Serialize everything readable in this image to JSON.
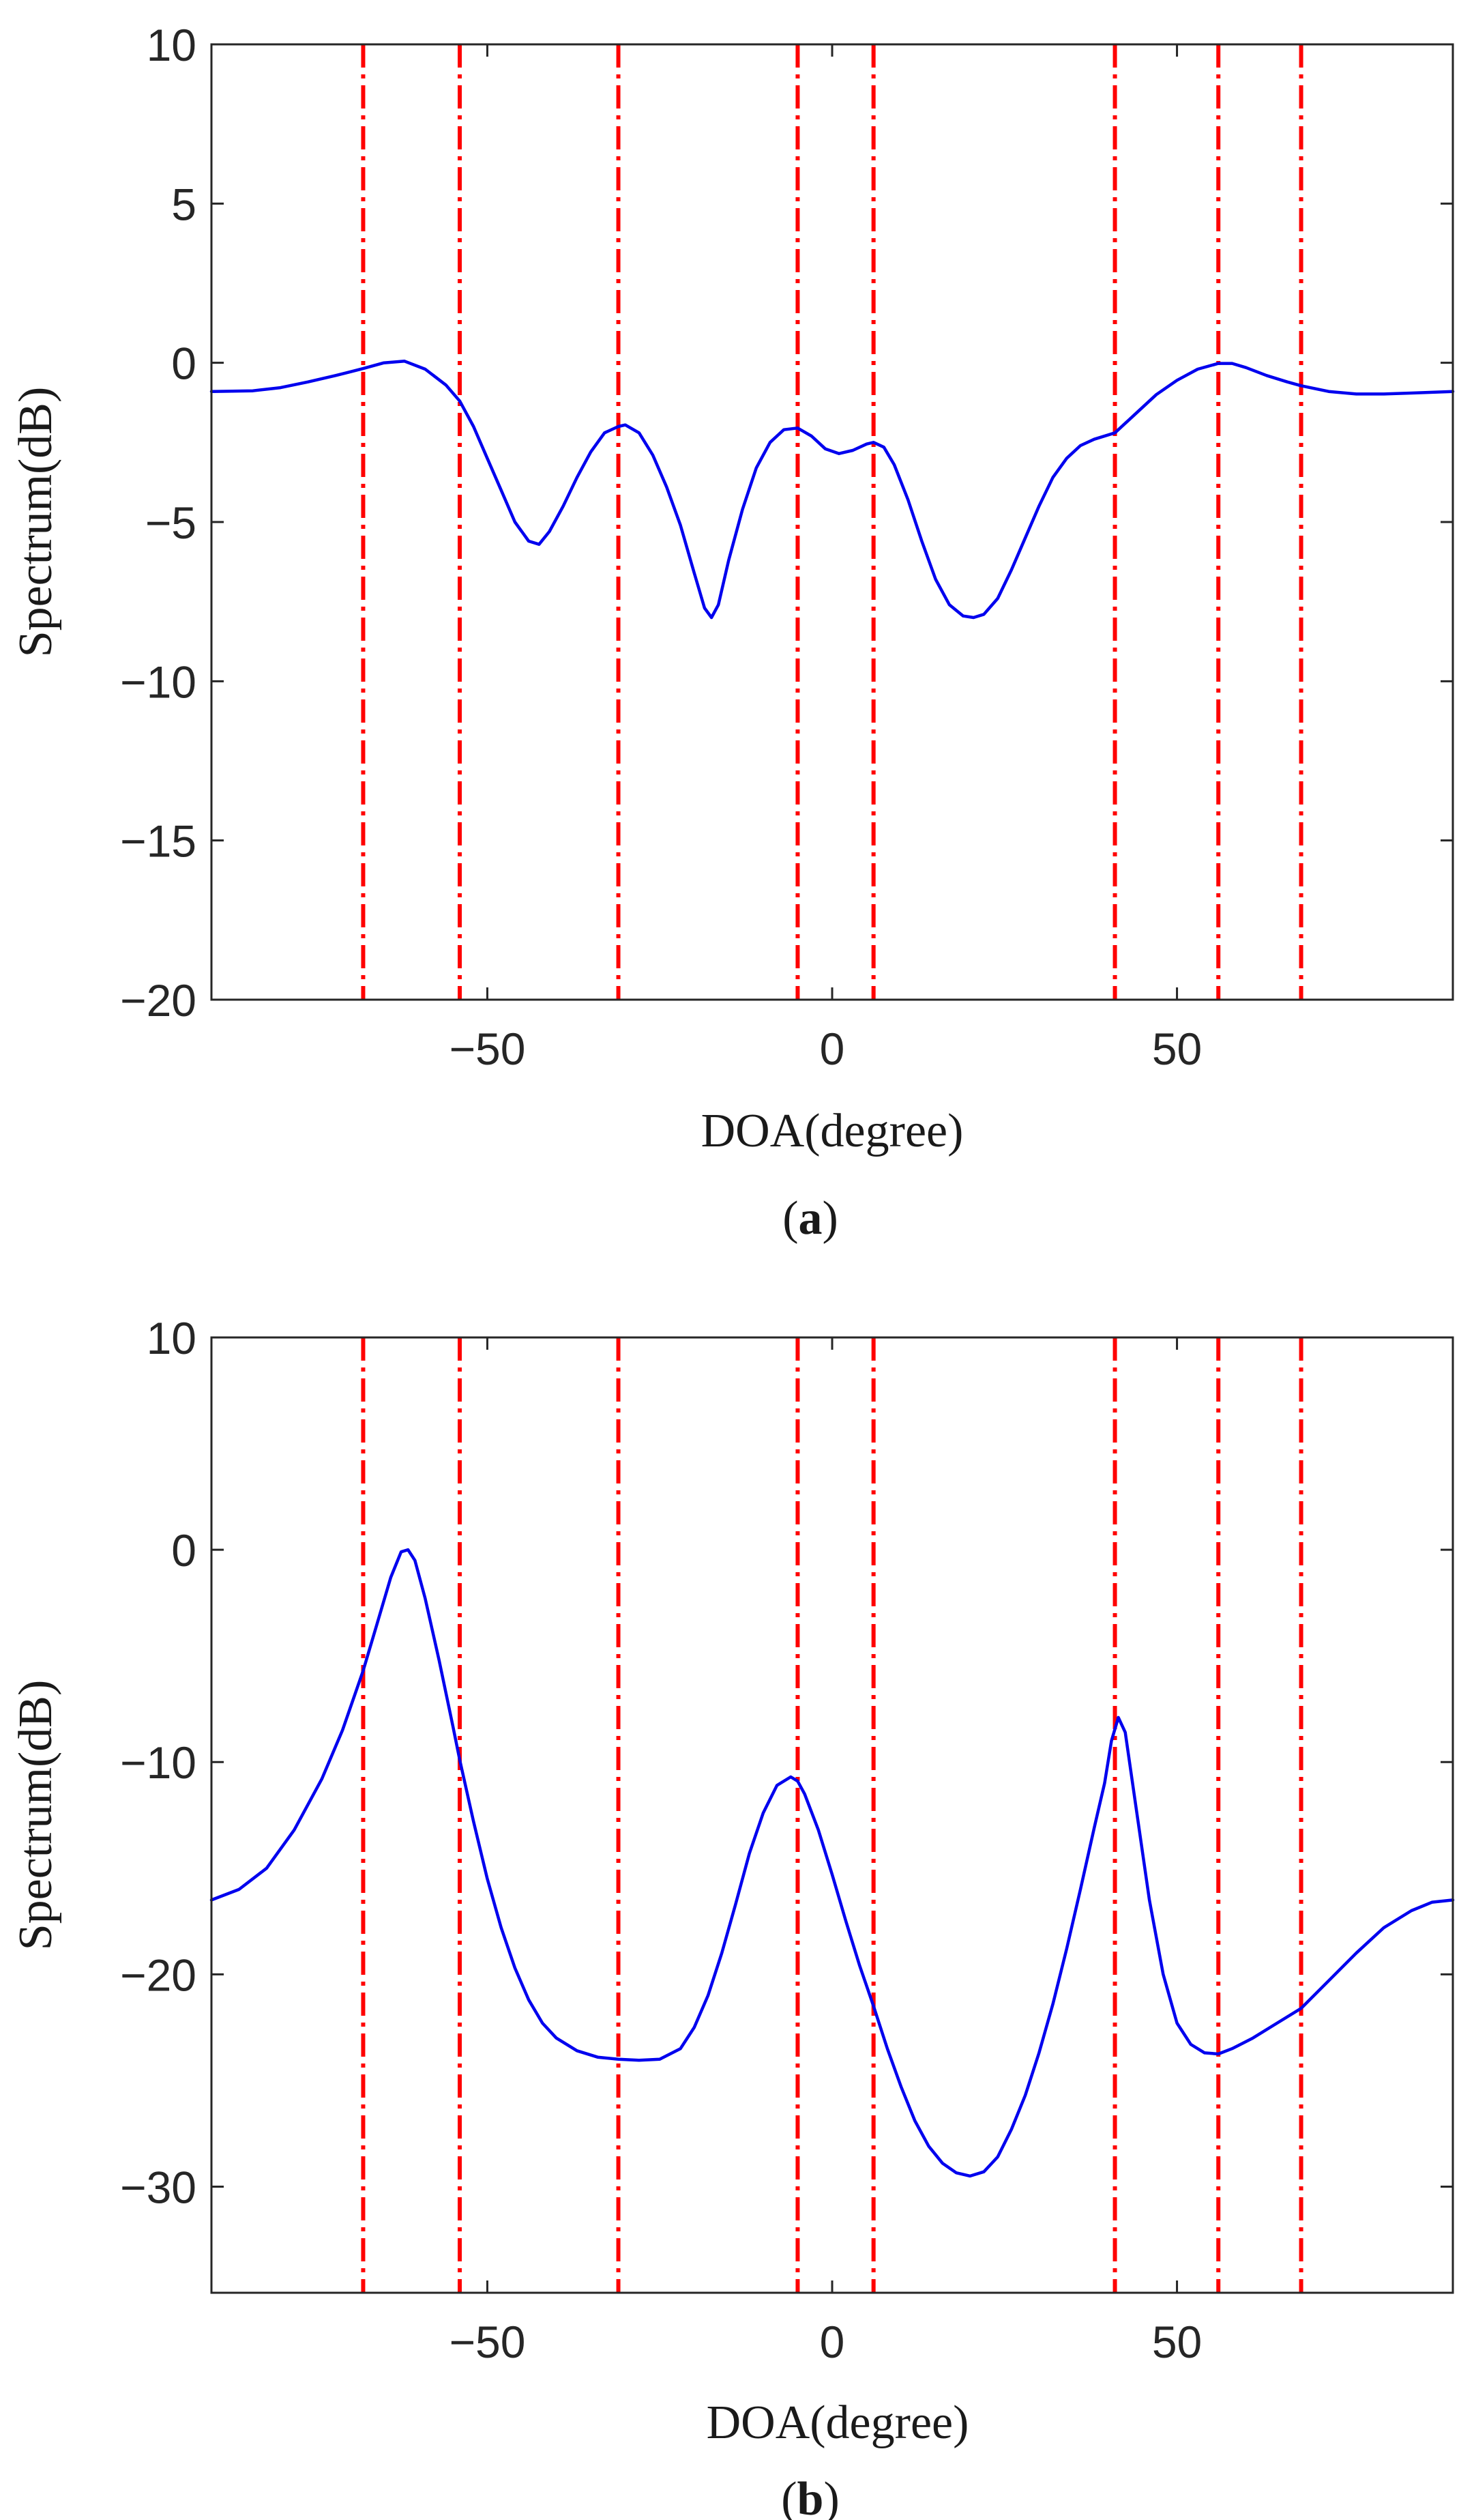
{
  "chart_data": [
    {
      "type": "line",
      "panel_label": "a",
      "title": "",
      "xlabel": "DOA(degree)",
      "ylabel": "Spectrum(dB)",
      "xlim": [
        -90,
        90
      ],
      "ylim": [
        -20,
        10
      ],
      "xticks": [
        -50,
        0,
        50
      ],
      "xtick_labels": [
        "−50",
        "0",
        "50"
      ],
      "yticks": [
        10,
        5,
        0,
        -5,
        -10,
        -15,
        -20
      ],
      "ytick_labels": [
        "10",
        "5",
        "0",
        "−5",
        "−10",
        "−15",
        "−20"
      ],
      "grid": false,
      "reference_lines": {
        "orientation": "vertical",
        "style": "dash-dot",
        "color": "#ff0000",
        "x": [
          -68,
          -54,
          -31,
          -5,
          6,
          41,
          56,
          68
        ]
      },
      "series": [
        {
          "name": "spectrum",
          "color": "#0000ee",
          "points": [
            [
              -90,
              -0.9
            ],
            [
              -84,
              -0.88
            ],
            [
              -80,
              -0.78
            ],
            [
              -76,
              -0.6
            ],
            [
              -72,
              -0.4
            ],
            [
              -68,
              -0.18
            ],
            [
              -65,
              0.0
            ],
            [
              -62,
              0.05
            ],
            [
              -59,
              -0.2
            ],
            [
              -56,
              -0.7
            ],
            [
              -54,
              -1.2
            ],
            [
              -52,
              -2.0
            ],
            [
              -50,
              -3.0
            ],
            [
              -48,
              -4.0
            ],
            [
              -46,
              -5.0
            ],
            [
              -44,
              -5.6
            ],
            [
              -42.5,
              -5.7
            ],
            [
              -41,
              -5.3
            ],
            [
              -39,
              -4.5
            ],
            [
              -37,
              -3.6
            ],
            [
              -35,
              -2.8
            ],
            [
              -33,
              -2.2
            ],
            [
              -31,
              -2.0
            ],
            [
              -30,
              -1.95
            ],
            [
              -28,
              -2.2
            ],
            [
              -26,
              -2.9
            ],
            [
              -24,
              -3.9
            ],
            [
              -22,
              -5.1
            ],
            [
              -20,
              -6.6
            ],
            [
              -18.5,
              -7.7
            ],
            [
              -17.5,
              -8.0
            ],
            [
              -16.5,
              -7.6
            ],
            [
              -15,
              -6.2
            ],
            [
              -13,
              -4.6
            ],
            [
              -11,
              -3.3
            ],
            [
              -9,
              -2.5
            ],
            [
              -7,
              -2.1
            ],
            [
              -5,
              -2.05
            ],
            [
              -3,
              -2.3
            ],
            [
              -1,
              -2.7
            ],
            [
              1,
              -2.85
            ],
            [
              3,
              -2.75
            ],
            [
              5,
              -2.55
            ],
            [
              6,
              -2.5
            ],
            [
              7.5,
              -2.65
            ],
            [
              9,
              -3.2
            ],
            [
              11,
              -4.3
            ],
            [
              13,
              -5.6
            ],
            [
              15,
              -6.8
            ],
            [
              17,
              -7.6
            ],
            [
              19,
              -7.95
            ],
            [
              20.5,
              -8.0
            ],
            [
              22,
              -7.9
            ],
            [
              24,
              -7.4
            ],
            [
              26,
              -6.5
            ],
            [
              28,
              -5.5
            ],
            [
              30,
              -4.5
            ],
            [
              32,
              -3.6
            ],
            [
              34,
              -3.0
            ],
            [
              36,
              -2.6
            ],
            [
              38,
              -2.4
            ],
            [
              41,
              -2.2
            ],
            [
              44,
              -1.6
            ],
            [
              47,
              -1.0
            ],
            [
              50,
              -0.55
            ],
            [
              53,
              -0.2
            ],
            [
              56,
              -0.02
            ],
            [
              58,
              -0.02
            ],
            [
              60,
              -0.15
            ],
            [
              63,
              -0.4
            ],
            [
              66,
              -0.6
            ],
            [
              68,
              -0.72
            ],
            [
              72,
              -0.9
            ],
            [
              76,
              -0.98
            ],
            [
              80,
              -0.98
            ],
            [
              84,
              -0.95
            ],
            [
              90,
              -0.9
            ]
          ]
        }
      ]
    },
    {
      "type": "line",
      "panel_label": "b",
      "title": "",
      "xlabel": "DOA(degree)",
      "ylabel": "Spectrum(dB)",
      "xlim": [
        -90,
        90
      ],
      "ylim": [
        -35,
        10
      ],
      "xticks": [
        -50,
        0,
        50
      ],
      "xtick_labels": [
        "−50",
        "0",
        "50"
      ],
      "yticks": [
        10,
        0,
        -10,
        -20,
        -30
      ],
      "ytick_labels": [
        "10",
        "0",
        "−10",
        "−20",
        "−30"
      ],
      "grid": false,
      "reference_lines": {
        "orientation": "vertical",
        "style": "dash-dot",
        "color": "#ff0000",
        "x": [
          -68,
          -54,
          -31,
          -5,
          6,
          41,
          56,
          68
        ]
      },
      "series": [
        {
          "name": "spectrum",
          "color": "#0000ee",
          "points": [
            [
              -90,
              -16.5
            ],
            [
              -86,
              -16.0
            ],
            [
              -82,
              -15.0
            ],
            [
              -78,
              -13.2
            ],
            [
              -74,
              -10.8
            ],
            [
              -71,
              -8.5
            ],
            [
              -68,
              -5.7
            ],
            [
              -66,
              -3.5
            ],
            [
              -64,
              -1.3
            ],
            [
              -62.5,
              -0.1
            ],
            [
              -61.5,
              0.0
            ],
            [
              -60.5,
              -0.5
            ],
            [
              -59,
              -2.3
            ],
            [
              -57,
              -5.2
            ],
            [
              -55,
              -8.3
            ],
            [
              -54,
              -9.9
            ],
            [
              -52,
              -12.8
            ],
            [
              -50,
              -15.5
            ],
            [
              -48,
              -17.8
            ],
            [
              -46,
              -19.7
            ],
            [
              -44,
              -21.2
            ],
            [
              -42,
              -22.3
            ],
            [
              -40,
              -23.0
            ],
            [
              -37,
              -23.6
            ],
            [
              -34,
              -23.9
            ],
            [
              -31,
              -24.0
            ],
            [
              -28,
              -24.05
            ],
            [
              -25,
              -24.0
            ],
            [
              -22,
              -23.5
            ],
            [
              -20,
              -22.5
            ],
            [
              -18,
              -21.0
            ],
            [
              -16,
              -19.0
            ],
            [
              -14,
              -16.7
            ],
            [
              -12,
              -14.3
            ],
            [
              -10,
              -12.4
            ],
            [
              -8,
              -11.1
            ],
            [
              -6,
              -10.7
            ],
            [
              -5,
              -10.9
            ],
            [
              -4,
              -11.5
            ],
            [
              -2,
              -13.2
            ],
            [
              0,
              -15.3
            ],
            [
              2,
              -17.5
            ],
            [
              4,
              -19.6
            ],
            [
              6,
              -21.5
            ],
            [
              8,
              -23.5
            ],
            [
              10,
              -25.3
            ],
            [
              12,
              -26.9
            ],
            [
              14,
              -28.1
            ],
            [
              16,
              -28.9
            ],
            [
              18,
              -29.35
            ],
            [
              20,
              -29.5
            ],
            [
              22,
              -29.3
            ],
            [
              24,
              -28.6
            ],
            [
              26,
              -27.3
            ],
            [
              28,
              -25.7
            ],
            [
              30,
              -23.7
            ],
            [
              32,
              -21.4
            ],
            [
              34,
              -18.8
            ],
            [
              36,
              -16.0
            ],
            [
              38,
              -13.1
            ],
            [
              39.5,
              -11.0
            ],
            [
              40.5,
              -9.0
            ],
            [
              41.5,
              -7.9
            ],
            [
              42.5,
              -8.6
            ],
            [
              44,
              -12.0
            ],
            [
              46,
              -16.5
            ],
            [
              48,
              -20.0
            ],
            [
              50,
              -22.3
            ],
            [
              52,
              -23.3
            ],
            [
              54,
              -23.7
            ],
            [
              56,
              -23.75
            ],
            [
              58,
              -23.5
            ],
            [
              61,
              -23.0
            ],
            [
              64,
              -22.4
            ],
            [
              68,
              -21.6
            ],
            [
              72,
              -20.3
            ],
            [
              76,
              -19.0
            ],
            [
              80,
              -17.8
            ],
            [
              84,
              -17.0
            ],
            [
              87,
              -16.6
            ],
            [
              90,
              -16.5
            ]
          ]
        }
      ]
    }
  ]
}
